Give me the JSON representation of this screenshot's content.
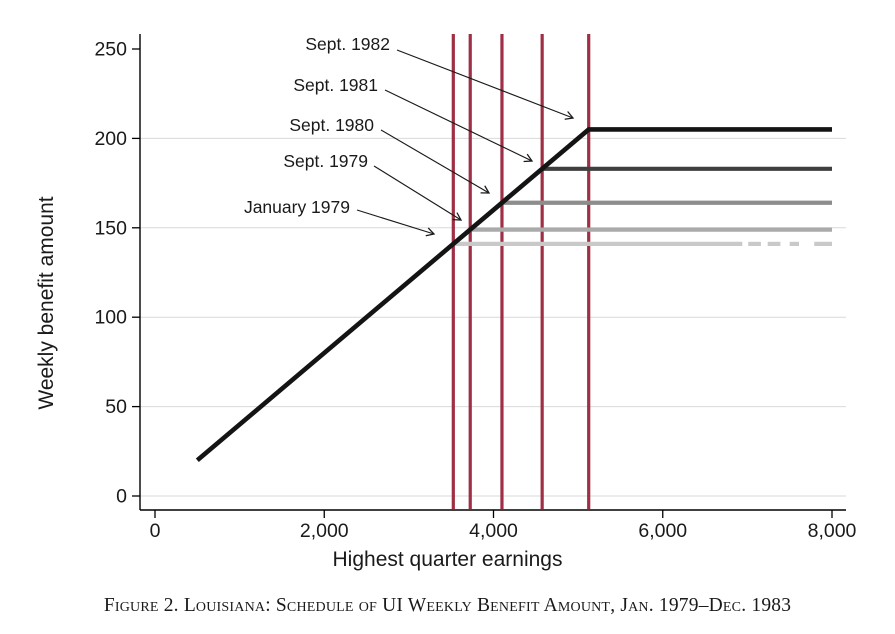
{
  "figure": {
    "caption": "Figure 2. Louisiana: Schedule of UI Weekly Benefit Amount, Jan. 1979–Dec. 1983"
  },
  "chart_data": {
    "type": "line",
    "xlabel": "Highest quarter earnings",
    "ylabel": "Weekly benefit amount",
    "xlim": [
      0,
      8400
    ],
    "ylim": [
      -8,
      266
    ],
    "xticks": [
      {
        "value": 0,
        "label": "0"
      },
      {
        "value": 2000,
        "label": "2,000"
      },
      {
        "value": 4000,
        "label": "4,000"
      },
      {
        "value": 6000,
        "label": "6,000"
      },
      {
        "value": 8000,
        "label": "8,000"
      }
    ],
    "yticks": [
      {
        "value": 0,
        "label": "0"
      },
      {
        "value": 50,
        "label": "50"
      },
      {
        "value": 100,
        "label": "100"
      },
      {
        "value": 150,
        "label": "150"
      },
      {
        "value": 200,
        "label": "200"
      },
      {
        "value": 250,
        "label": "250"
      }
    ],
    "gridlines_y": [
      0,
      50,
      100,
      150,
      200
    ],
    "grid_color": "#d9d9d9",
    "axis_color": "#000000",
    "benefit_formula_slope": 0.04,
    "schedule_diagonal": {
      "start": {
        "earnings": 500,
        "benefit": 20
      },
      "end": {
        "earnings": 5125,
        "benefit": 205
      }
    },
    "series": [
      {
        "name": "Sept. 1982",
        "max_weekly_benefit": 205,
        "kink_earnings": 5125,
        "flat_to_earnings": 8000,
        "color": "#141414",
        "includes_diagonal": true
      },
      {
        "name": "Sept. 1981",
        "max_weekly_benefit": 183,
        "kink_earnings": 4575,
        "flat_to_earnings": 8000,
        "color": "#3f3f3f"
      },
      {
        "name": "Sept. 1980",
        "max_weekly_benefit": 164,
        "kink_earnings": 4100,
        "flat_to_earnings": 8000,
        "color": "#8d8d8d"
      },
      {
        "name": "Sept. 1979",
        "max_weekly_benefit": 149,
        "kink_earnings": 3725,
        "flat_to_earnings": 8000,
        "color": "#aaaaaa"
      },
      {
        "name": "January 1979",
        "max_weekly_benefit": 141,
        "kink_earnings": 3525,
        "flat_to_earnings": 8000,
        "color": "#c9c9c9",
        "segments": [
          [
            3525,
            6940
          ],
          [
            7010,
            7160
          ],
          [
            7240,
            7390
          ],
          [
            7500,
            7610
          ],
          [
            7790,
            8000
          ]
        ]
      }
    ],
    "vertical_lines": {
      "color": "#9e2f44",
      "values": [
        3525,
        3725,
        4100,
        4575,
        5125
      ]
    },
    "annotations": [
      {
        "label": "Sept. 1982",
        "points_to": {
          "earnings": 5125,
          "benefit": 205
        },
        "label_anchor": [
          390,
          44
        ],
        "arrow": [
          397,
          50,
          573,
          118
        ]
      },
      {
        "label": "Sept. 1981",
        "points_to": {
          "earnings": 4575,
          "benefit": 183
        },
        "label_anchor": [
          378,
          85
        ],
        "arrow": [
          385,
          90,
          532,
          161
        ]
      },
      {
        "label": "Sept. 1980",
        "points_to": {
          "earnings": 4100,
          "benefit": 164
        },
        "label_anchor": [
          374,
          125
        ],
        "arrow": [
          381,
          130,
          489,
          193
        ]
      },
      {
        "label": "Sept. 1979",
        "points_to": {
          "earnings": 3725,
          "benefit": 149
        },
        "label_anchor": [
          368,
          161
        ],
        "arrow": [
          374,
          166,
          461,
          220
        ]
      },
      {
        "label": "January 1979",
        "points_to": {
          "earnings": 3525,
          "benefit": 141
        },
        "label_anchor": [
          350,
          207
        ],
        "arrow": [
          357,
          210,
          434,
          234
        ]
      }
    ]
  }
}
